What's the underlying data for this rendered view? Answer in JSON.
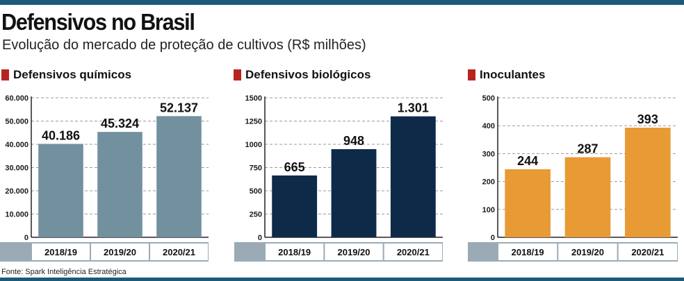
{
  "title": "Defensivos no Brasil",
  "subtitle": "Evolução do mercado de proteção de cultivos (R$ milhões)",
  "source": "Fonte: Spark Inteligência Estratégica",
  "colors": {
    "accent_rule": "#1c5a7c",
    "title_marker": "#b5261e",
    "category_band": "#9aabb5"
  },
  "chart_data": [
    {
      "type": "bar",
      "title": "Defensivos químicos",
      "categories": [
        "2018/19",
        "2019/20",
        "2020/21"
      ],
      "values": [
        40186,
        45324,
        52137
      ],
      "value_labels": [
        "40.186",
        "45.324",
        "52.137"
      ],
      "ylim": [
        0,
        60000
      ],
      "yticks": [
        0,
        10000,
        20000,
        30000,
        40000,
        50000,
        60000
      ],
      "ytick_labels": [
        "0",
        "10.000",
        "20.000",
        "30.000",
        "40.000",
        "50.000",
        "60.000"
      ],
      "color": "#72909e",
      "grid": true
    },
    {
      "type": "bar",
      "title": "Defensivos biológicos",
      "categories": [
        "2018/19",
        "2019/20",
        "2020/21"
      ],
      "values": [
        665,
        948,
        1301
      ],
      "value_labels": [
        "665",
        "948",
        "1.301"
      ],
      "ylim": [
        0,
        1500
      ],
      "yticks": [
        0,
        250,
        500,
        750,
        1000,
        1250,
        1500
      ],
      "ytick_labels": [
        "0",
        "250",
        "500",
        "750",
        "1000",
        "1250",
        "1500"
      ],
      "color": "#0f2a48",
      "grid": true
    },
    {
      "type": "bar",
      "title": "Inoculantes",
      "categories": [
        "2018/19",
        "2019/20",
        "2020/21"
      ],
      "values": [
        244,
        287,
        393
      ],
      "value_labels": [
        "244",
        "287",
        "393"
      ],
      "ylim": [
        0,
        500
      ],
      "yticks": [
        0,
        100,
        200,
        300,
        400,
        500
      ],
      "ytick_labels": [
        "0",
        "100",
        "200",
        "300",
        "400",
        "500"
      ],
      "color": "#e89a35",
      "grid": true
    }
  ]
}
